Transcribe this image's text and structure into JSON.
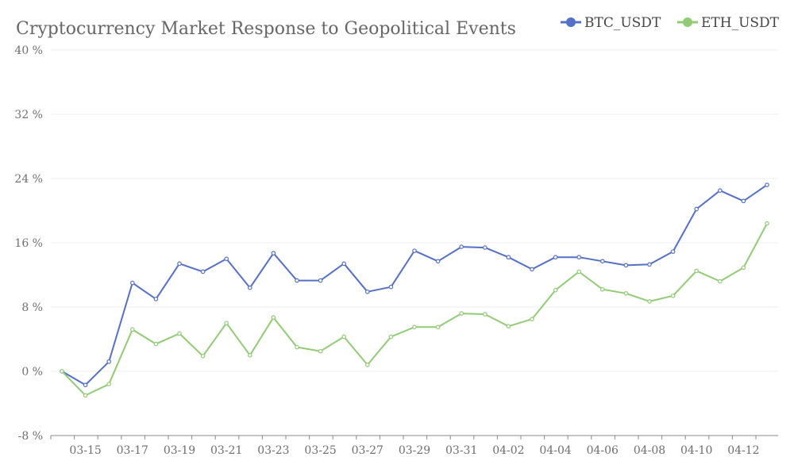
{
  "chart_data": {
    "type": "line",
    "title": "Cryptocurrency Market Response to Geopolitical Events",
    "x": [
      "03-14",
      "03-15",
      "03-16",
      "03-17",
      "03-18",
      "03-19",
      "03-20",
      "03-21",
      "03-22",
      "03-23",
      "03-24",
      "03-25",
      "03-26",
      "03-27",
      "03-28",
      "03-29",
      "03-30",
      "03-31",
      "04-01",
      "04-02",
      "04-03",
      "04-04",
      "04-05",
      "04-06",
      "04-07",
      "04-08",
      "04-09",
      "04-10",
      "04-11",
      "04-12",
      "04-13"
    ],
    "x_tick_labels": [
      "03-15",
      "03-17",
      "03-19",
      "03-21",
      "03-23",
      "03-25",
      "03-27",
      "03-29",
      "03-31",
      "04-02",
      "04-04",
      "04-06",
      "04-08",
      "04-10",
      "04-12"
    ],
    "series": [
      {
        "name": "BTC_USDT",
        "color": "#5470c6",
        "values": [
          0,
          -1.7,
          1.2,
          11.0,
          9.0,
          13.4,
          12.4,
          14.0,
          10.4,
          14.7,
          11.3,
          11.3,
          13.4,
          9.9,
          10.5,
          15.0,
          13.7,
          15.5,
          15.4,
          14.2,
          12.7,
          14.2,
          14.2,
          13.7,
          13.2,
          13.3,
          14.9,
          20.2,
          22.5,
          21.2,
          23.2
        ]
      },
      {
        "name": "ETH_USDT",
        "color": "#91cc75",
        "values": [
          0,
          -3.0,
          -1.6,
          5.2,
          3.4,
          4.7,
          1.9,
          6.0,
          2.0,
          6.7,
          3.0,
          2.5,
          4.3,
          0.8,
          4.3,
          5.5,
          5.5,
          7.2,
          7.1,
          5.6,
          6.5,
          10.1,
          12.4,
          10.2,
          9.7,
          8.7,
          9.4,
          12.5,
          11.2,
          12.9,
          18.4
        ]
      }
    ],
    "ylim": [
      -8,
      40
    ],
    "y_ticks": [
      -8,
      0,
      8,
      16,
      24,
      32,
      40
    ],
    "y_tick_suffix": " %",
    "legend_placement": "top-right",
    "grid": true
  }
}
